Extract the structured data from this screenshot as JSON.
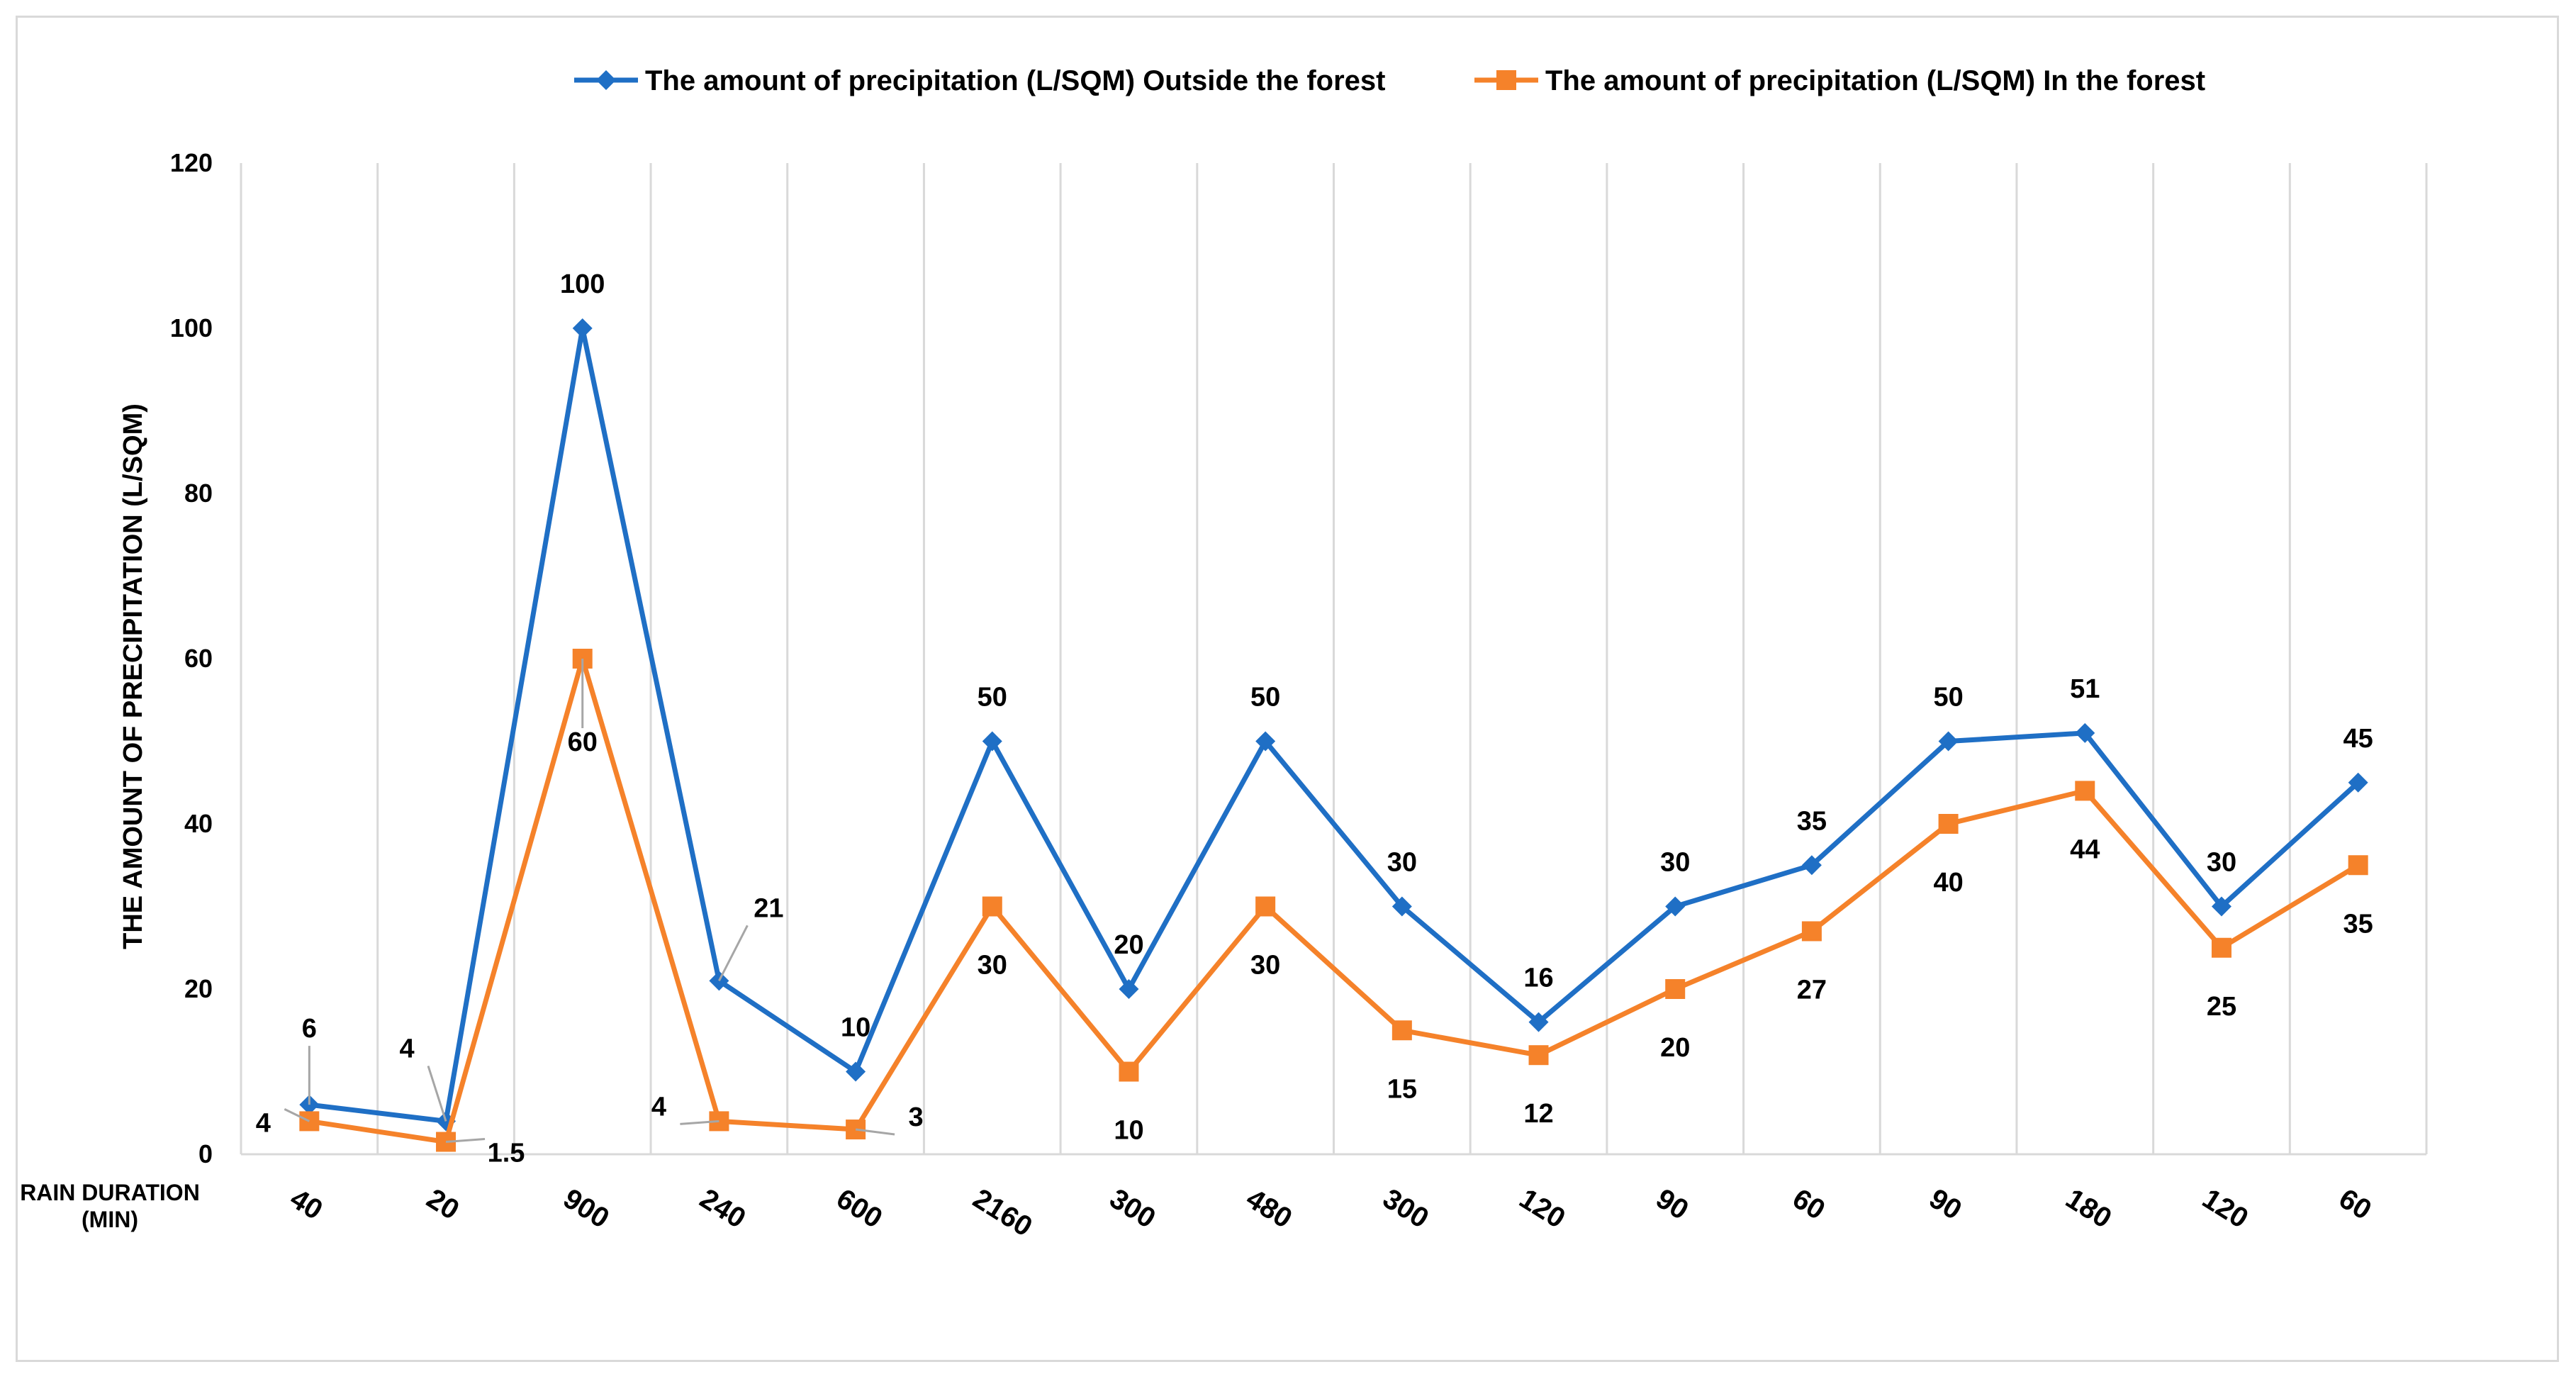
{
  "chart_data": {
    "type": "line",
    "title": "",
    "xlabel": "RAIN DURATION (MIN)",
    "ylabel": "THE AMOUNT OF PRECIPITATION (L/SQM)",
    "ylim": [
      0,
      120
    ],
    "yticks": [
      0,
      20,
      40,
      60,
      80,
      100,
      120
    ],
    "categories": [
      "40",
      "20",
      "900",
      "240",
      "600",
      "2160",
      "300",
      "480",
      "300",
      "120",
      "90",
      "60",
      "90",
      "180",
      "120",
      "60"
    ],
    "legend_position": "top",
    "grid": "vertical",
    "series": [
      {
        "name": "The amount of precipitation (L/SQM) Outside the forest",
        "color": "#1f6fc5",
        "marker": "diamond",
        "values": [
          6,
          4,
          100,
          21,
          10,
          50,
          20,
          50,
          30,
          16,
          30,
          35,
          50,
          51,
          30,
          45
        ],
        "labels": [
          "6",
          "4",
          "100",
          "21",
          "10",
          "50",
          "20",
          "50",
          "30",
          "16",
          "30",
          "35",
          "50",
          "51",
          "30",
          "45"
        ]
      },
      {
        "name": "The amount of precipitation (L/SQM) In the forest",
        "color": "#f5822a",
        "marker": "square",
        "values": [
          4,
          1.5,
          60,
          4,
          3,
          30,
          10,
          30,
          15,
          12,
          20,
          27,
          40,
          44,
          25,
          35
        ],
        "labels": [
          "4",
          "1.5",
          "60",
          "4",
          "3",
          "30",
          "10",
          "30",
          "15",
          "12",
          "20",
          "27",
          "40",
          "44",
          "25",
          "35"
        ]
      }
    ]
  }
}
